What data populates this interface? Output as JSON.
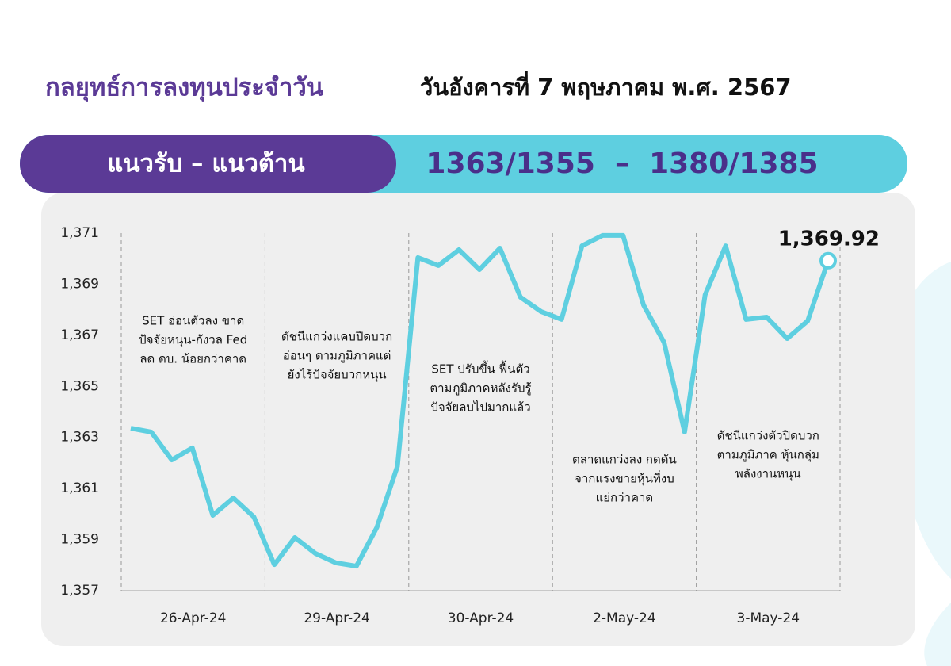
{
  "header": {
    "title": "กลยุทธ์การลงทุนประจำวัน",
    "date": "วันอังคารที่ 7 พฤษภาคม พ.ศ. 2567"
  },
  "levels": {
    "label": "แนวรับ – แนวต้าน",
    "value": "1363/1355  –  1380/1385"
  },
  "chart_data": {
    "type": "line",
    "color": "#5ecfe0",
    "groups": [
      "26-Apr-24",
      "29-Apr-24",
      "30-Apr-24",
      "2-May-24",
      "3-May-24"
    ],
    "annotations": [
      [
        "SET อ่อนตัวลง ขาด",
        "ปัจจัยหนุน-กังวล Fed",
        "ลด ดบ. น้อยกว่าคาด"
      ],
      [
        "ดัชนีแกว่งแคบปิดบวก",
        "อ่อนๆ ตามภูมิภาคแต่",
        "ยังไร้ปัจจัยบวกหนุน"
      ],
      [
        "SET ปรับขึ้น ฟื้นตัว",
        "ตามภูมิภาคหลังรับรู้",
        "ปัจจัยลบไปมากแล้ว"
      ],
      [
        "ตลาดแกว่งลง กดดัน",
        "จากแรงขายหุ้นที่งบ",
        "แย่กว่าคาด"
      ],
      [
        "ดัชนีแกว่งตัวปิดบวก",
        "ตามภูมิภาค หุ้นกลุ่ม",
        "พลังงานหนุน"
      ]
    ],
    "values": [
      1363.36,
      1363.21,
      1362.12,
      1362.59,
      1359.95,
      1360.63,
      1359.89,
      1358.02,
      1359.08,
      1358.46,
      1358.09,
      1357.96,
      1359.48,
      1361.87,
      1370.04,
      1369.73,
      1370.35,
      1369.57,
      1370.41,
      1368.49,
      1367.93,
      1367.62,
      1370.5,
      1370.91,
      1370.91,
      1368.18,
      1366.72,
      1363.21,
      1368.58,
      1370.5,
      1367.62,
      1367.71,
      1366.87,
      1367.56,
      1369.92
    ],
    "value_labels": [
      null,
      null,
      null,
      null,
      null,
      null,
      null,
      null,
      null,
      null,
      null,
      null,
      null,
      null,
      null,
      null,
      null,
      null,
      null,
      null,
      null,
      null,
      null,
      null,
      null,
      null,
      null,
      null,
      null,
      null,
      null,
      null,
      null,
      null,
      "1,369.92"
    ],
    "ylim": [
      1357,
      1371
    ],
    "yticks": [
      {
        "value": 1357,
        "label": "1,357"
      },
      {
        "value": 1359,
        "label": "1,359"
      },
      {
        "value": 1361,
        "label": "1,361"
      },
      {
        "value": 1363,
        "label": "1,363"
      },
      {
        "value": 1365,
        "label": "1,365"
      },
      {
        "value": 1367,
        "label": "1,367"
      },
      {
        "value": 1369,
        "label": "1,369"
      },
      {
        "value": 1371,
        "label": "1,371"
      }
    ]
  }
}
